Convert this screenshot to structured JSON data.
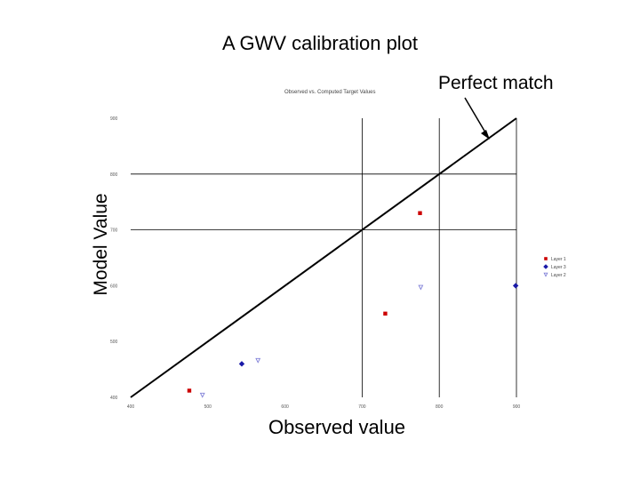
{
  "slide": {
    "title": "A GWV calibration plot",
    "callout": "Perfect match",
    "x_axis_title": "Observed value",
    "y_axis_title": "Model Value",
    "inner_chart_title": "Observed vs. Computed Target Values"
  },
  "chart_data": {
    "type": "scatter",
    "title": "Observed vs. Computed Target Values",
    "xlabel": "Observed value",
    "ylabel": "Model Value",
    "xlim": [
      400,
      900
    ],
    "ylim": [
      400,
      900
    ],
    "x_ticks": [
      "400",
      "500",
      "600",
      "700",
      "800",
      "900"
    ],
    "y_ticks": [
      "400",
      "500",
      "600",
      "700",
      "800",
      "900"
    ],
    "grid": false,
    "legend_position": "right",
    "perfect_match_line": {
      "from": [
        400,
        400
      ],
      "to": [
        900,
        900
      ]
    },
    "series": [
      {
        "name": "Layer 1",
        "color": "#cc0000",
        "marker": "square",
        "points": [
          [
            775,
            730
          ],
          [
            730,
            550
          ],
          [
            476,
            412
          ]
        ]
      },
      {
        "name": "Layer 3",
        "color": "#1a1aa8",
        "marker": "diamond",
        "points": [
          [
            899,
            600
          ],
          [
            544,
            460
          ]
        ]
      },
      {
        "name": "Layer 2",
        "color": "#8080d8",
        "marker": "triangle-down",
        "points": [
          [
            776,
            597
          ],
          [
            565,
            466
          ],
          [
            493,
            404
          ]
        ]
      }
    ]
  }
}
